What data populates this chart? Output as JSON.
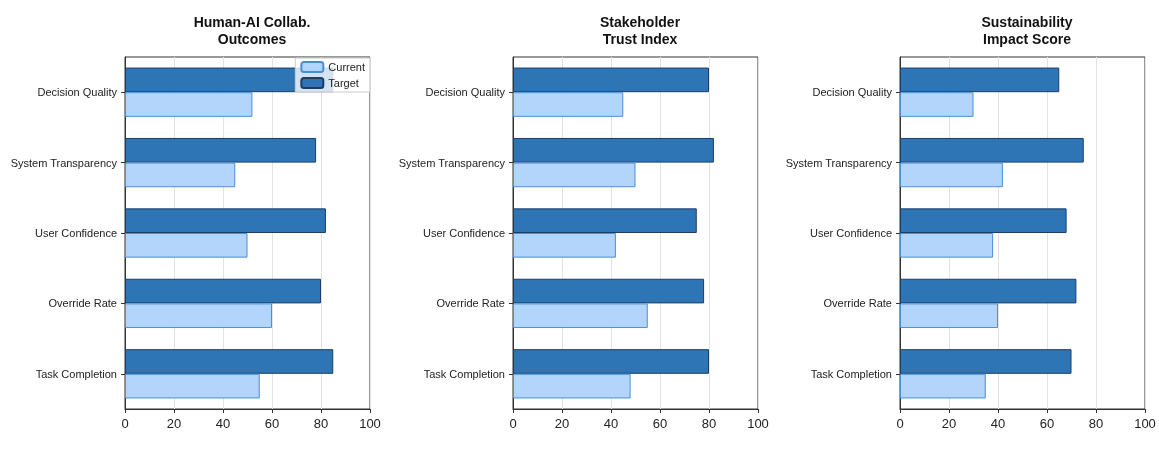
{
  "chart_data": [
    {
      "type": "bar",
      "orientation": "horizontal",
      "title": "Human-AI Collab.\nOutcomes",
      "categories": [
        "Decision Quality",
        "System Transparency",
        "User Confidence",
        "Override Rate",
        "Task Completion"
      ],
      "series": [
        {
          "name": "Current",
          "color": "#b3d4fb",
          "values": [
            52,
            45,
            50,
            60,
            55
          ]
        },
        {
          "name": "Target",
          "color": "#2e75b6",
          "values": [
            85,
            78,
            82,
            80,
            85
          ]
        }
      ],
      "xlim": [
        0,
        100
      ],
      "xticks": [
        0,
        20,
        40,
        60,
        80,
        100
      ],
      "grid": "x",
      "legend": "top right"
    },
    {
      "type": "bar",
      "orientation": "horizontal",
      "title": "Stakeholder\nTrust Index",
      "categories": [
        "Decision Quality",
        "System Transparency",
        "User Confidence",
        "Override Rate",
        "Task Completion"
      ],
      "series": [
        {
          "color": "#b3d4fb",
          "values": [
            45,
            50,
            42,
            55,
            48
          ]
        },
        {
          "color": "#2e75b6",
          "values": [
            80,
            82,
            75,
            78,
            80
          ]
        }
      ],
      "xlim": [
        0,
        100
      ],
      "xticks": [
        0,
        20,
        40,
        60,
        80,
        100
      ],
      "grid": "x"
    },
    {
      "type": "bar",
      "orientation": "horizontal",
      "title": "Sustainability\nImpact Score",
      "categories": [
        "Decision Quality",
        "System Transparency",
        "User Confidence",
        "Override Rate",
        "Task Completion"
      ],
      "series": [
        {
          "color": "#b3d4fb",
          "values": [
            30,
            42,
            38,
            40,
            35
          ]
        },
        {
          "color": "#2e75b6",
          "values": [
            65,
            75,
            68,
            72,
            70
          ]
        }
      ],
      "xlim": [
        0,
        100
      ],
      "xticks": [
        0,
        20,
        40,
        60,
        80,
        100
      ],
      "grid": "x"
    }
  ]
}
